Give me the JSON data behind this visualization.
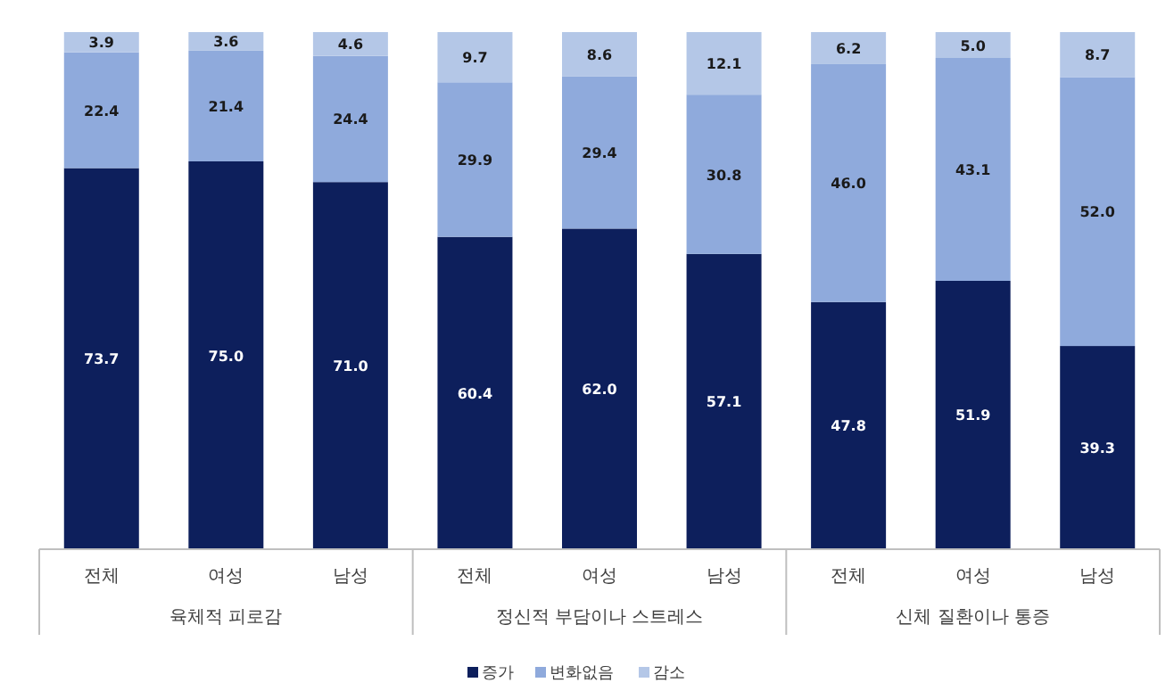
{
  "chart_data": {
    "type": "bar",
    "stacked": true,
    "legend": "bottom",
    "categories": [
      "전체",
      "여성",
      "남성",
      "전체",
      "여성",
      "남성",
      "전체",
      "여성",
      "남성"
    ],
    "series": [
      {
        "name": "증가",
        "color": "#0d1f5c",
        "values": [
          73.7,
          75.0,
          71.0,
          60.4,
          62.0,
          57.1,
          47.8,
          51.9,
          39.3
        ],
        "value_labels": [
          "73.7",
          "75.0",
          "71.0",
          "60.4",
          "62.0",
          "57.1",
          "47.8",
          "51.9",
          "39.3"
        ]
      },
      {
        "name": "변화없음",
        "color": "#8faadc",
        "values": [
          22.4,
          21.4,
          24.4,
          29.9,
          29.4,
          30.8,
          46.0,
          43.1,
          52.0
        ],
        "value_labels": [
          "22.4",
          "21.4",
          "24.4",
          "29.9",
          "29.4",
          "30.8",
          "46.0",
          "43.1",
          "52.0"
        ]
      },
      {
        "name": "감소",
        "color": "#b4c7e7",
        "values": [
          3.9,
          3.6,
          4.6,
          9.7,
          8.6,
          12.1,
          6.2,
          5.0,
          8.7
        ],
        "value_labels": [
          "3.9",
          "3.6",
          "4.6",
          "9.7",
          "8.6",
          "12.1",
          "6.2",
          "5.0",
          "8.7"
        ]
      }
    ],
    "annotations": [
      "육체적 피로감",
      "정신적 부담이나 스트레스",
      "신체 질환이나 통증"
    ]
  }
}
